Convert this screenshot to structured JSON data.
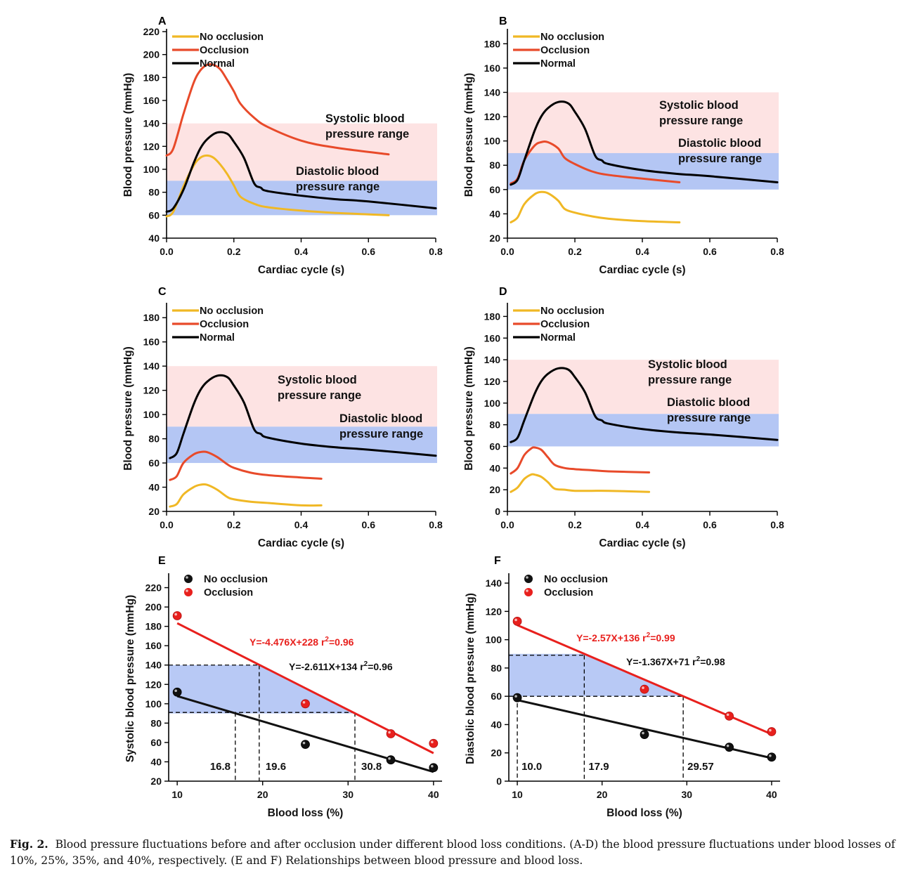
{
  "caption": {
    "fig_label": "Fig. 2.",
    "text": "Blood pressure fluctuations before and after occlusion under different blood loss conditions. (A-D) the blood pressure fluctuations under blood losses of 10%, 25%, 35%, and 40%, respectively. (E and F) Relationships between blood pressure and blood loss."
  },
  "colors": {
    "no_occlusion": "#f0b825",
    "occlusion": "#e84a2a",
    "normal": "#000000",
    "systolic_band": "#fde3e3",
    "diastolic_band": "#b4c6f4",
    "red_points": "#e8201d",
    "black_points": "#111111"
  },
  "chart_data": [
    {
      "panel": "A",
      "type": "line",
      "xlabel": "Cardiac cycle (s)",
      "ylabel": "Blood pressure (mmHg)",
      "xlim": [
        0,
        0.8
      ],
      "ylim": [
        40,
        220
      ],
      "xticks": [
        "0.0",
        "0.2",
        "0.4",
        "0.6",
        "0.8"
      ],
      "yticks": [
        "40",
        "60",
        "80",
        "100",
        "120",
        "140",
        "160",
        "180",
        "200",
        "220"
      ],
      "bands": [
        {
          "label": [
            "Systolic blood",
            "pressure range"
          ],
          "y": [
            90,
            140
          ]
        },
        {
          "label": [
            "Diastolic blood",
            "pressure range"
          ],
          "y": [
            60,
            90
          ]
        }
      ],
      "series": [
        {
          "name": "No occlusion",
          "x": [
            0,
            0.02,
            0.05,
            0.08,
            0.1,
            0.12,
            0.14,
            0.16,
            0.18,
            0.2,
            0.22,
            0.26,
            0.3,
            0.4,
            0.5,
            0.66
          ],
          "y": [
            59,
            63,
            85,
            103,
            110,
            112,
            110,
            104,
            96,
            86,
            76,
            70,
            67,
            64,
            62,
            60
          ]
        },
        {
          "name": "Occlusion",
          "x": [
            0,
            0.02,
            0.05,
            0.08,
            0.1,
            0.12,
            0.14,
            0.16,
            0.18,
            0.2,
            0.22,
            0.26,
            0.3,
            0.4,
            0.5,
            0.66
          ],
          "y": [
            112,
            118,
            148,
            175,
            186,
            191,
            191,
            187,
            178,
            168,
            157,
            145,
            137,
            125,
            119,
            113
          ]
        },
        {
          "name": "Normal",
          "x": [
            0,
            0.02,
            0.05,
            0.08,
            0.1,
            0.12,
            0.15,
            0.18,
            0.2,
            0.23,
            0.26,
            0.28,
            0.3,
            0.4,
            0.5,
            0.6,
            0.8
          ],
          "y": [
            63,
            66,
            82,
            105,
            118,
            126,
            132,
            131,
            124,
            110,
            88,
            84,
            81,
            77,
            74,
            72,
            66
          ]
        }
      ]
    },
    {
      "panel": "B",
      "type": "line",
      "xlabel": "Cardiac cycle (s)",
      "ylabel": "Blood pressure (mmHg)",
      "xlim": [
        0,
        0.8
      ],
      "ylim": [
        20,
        190
      ],
      "xticks": [
        "0.0",
        "0.2",
        "0.4",
        "0.6",
        "0.8"
      ],
      "yticks": [
        "20",
        "40",
        "60",
        "80",
        "100",
        "120",
        "140",
        "160",
        "180"
      ],
      "bands": [
        {
          "label": [
            "Systolic blood",
            "pressure range"
          ],
          "y": [
            90,
            140
          ]
        },
        {
          "label": [
            "Diastolic blood",
            "pressure range"
          ],
          "y": [
            60,
            90
          ]
        }
      ],
      "series": [
        {
          "name": "No occlusion",
          "x": [
            0.01,
            0.03,
            0.05,
            0.08,
            0.1,
            0.12,
            0.15,
            0.17,
            0.2,
            0.25,
            0.3,
            0.4,
            0.51
          ],
          "y": [
            33,
            37,
            48,
            56,
            58,
            57,
            51,
            44,
            41,
            38,
            36,
            34,
            33
          ]
        },
        {
          "name": "Occlusion",
          "x": [
            0.01,
            0.03,
            0.05,
            0.08,
            0.1,
            0.12,
            0.15,
            0.17,
            0.2,
            0.25,
            0.3,
            0.4,
            0.51
          ],
          "y": [
            65,
            69,
            84,
            96,
            99,
            99,
            94,
            86,
            81,
            75,
            72,
            69,
            66
          ]
        },
        {
          "name": "Normal",
          "x": [
            0.01,
            0.03,
            0.05,
            0.08,
            0.1,
            0.12,
            0.15,
            0.18,
            0.2,
            0.23,
            0.26,
            0.28,
            0.3,
            0.4,
            0.5,
            0.6,
            0.8
          ],
          "y": [
            64,
            68,
            84,
            108,
            120,
            127,
            132,
            131,
            124,
            110,
            88,
            84,
            81,
            76,
            73,
            71,
            66
          ]
        }
      ]
    },
    {
      "panel": "C",
      "type": "line",
      "xlabel": "Cardiac cycle (s)",
      "ylabel": "Blood pressure (mmHg)",
      "xlim": [
        0,
        0.8
      ],
      "ylim": [
        20,
        190
      ],
      "xticks": [
        "0.0",
        "0.2",
        "0.4",
        "0.6",
        "0.8"
      ],
      "yticks": [
        "20",
        "40",
        "60",
        "80",
        "100",
        "120",
        "140",
        "160",
        "180"
      ],
      "bands": [
        {
          "label": [
            "Systolic blood",
            "pressure range"
          ],
          "y": [
            90,
            140
          ]
        },
        {
          "label": [
            "Diastolic blood",
            "pressure range"
          ],
          "y": [
            60,
            90
          ]
        }
      ],
      "series": [
        {
          "name": "No occlusion",
          "x": [
            0.01,
            0.03,
            0.05,
            0.08,
            0.1,
            0.12,
            0.15,
            0.18,
            0.2,
            0.25,
            0.3,
            0.4,
            0.46
          ],
          "y": [
            24,
            26,
            34,
            40,
            42,
            42,
            38,
            32,
            30,
            28,
            27,
            25,
            25
          ]
        },
        {
          "name": "Occlusion",
          "x": [
            0.01,
            0.03,
            0.05,
            0.08,
            0.1,
            0.12,
            0.15,
            0.18,
            0.2,
            0.25,
            0.3,
            0.4,
            0.46
          ],
          "y": [
            46,
            49,
            60,
            67,
            69,
            69,
            65,
            59,
            56,
            52,
            50,
            48,
            47
          ]
        },
        {
          "name": "Normal",
          "x": [
            0.01,
            0.03,
            0.05,
            0.08,
            0.1,
            0.12,
            0.15,
            0.18,
            0.2,
            0.23,
            0.26,
            0.28,
            0.3,
            0.4,
            0.5,
            0.6,
            0.8
          ],
          "y": [
            64,
            68,
            84,
            108,
            120,
            127,
            132,
            131,
            124,
            110,
            88,
            84,
            81,
            76,
            73,
            71,
            66
          ]
        }
      ]
    },
    {
      "panel": "D",
      "type": "line",
      "xlabel": "Cardiac cycle (s)",
      "ylabel": "Blood pressure (mmHg)",
      "xlim": [
        0,
        0.8
      ],
      "ylim": [
        0,
        190
      ],
      "xticks": [
        "0.0",
        "0.2",
        "0.4",
        "0.6",
        "0.8"
      ],
      "yticks": [
        "0",
        "20",
        "40",
        "60",
        "80",
        "100",
        "120",
        "140",
        "160",
        "180"
      ],
      "bands": [
        {
          "label": [
            "Systolic blood",
            "pressure range"
          ],
          "y": [
            90,
            140
          ]
        },
        {
          "label": [
            "Diastolic blood",
            "pressure range"
          ],
          "y": [
            60,
            90
          ]
        }
      ],
      "series": [
        {
          "name": "No occlusion",
          "x": [
            0.01,
            0.03,
            0.05,
            0.07,
            0.08,
            0.1,
            0.12,
            0.14,
            0.17,
            0.2,
            0.25,
            0.3,
            0.42
          ],
          "y": [
            18,
            22,
            30,
            34,
            34,
            32,
            27,
            21,
            20,
            19,
            19,
            19,
            18
          ]
        },
        {
          "name": "Occlusion",
          "x": [
            0.01,
            0.03,
            0.05,
            0.07,
            0.08,
            0.1,
            0.12,
            0.14,
            0.17,
            0.2,
            0.25,
            0.3,
            0.42
          ],
          "y": [
            35,
            40,
            52,
            58,
            59,
            57,
            50,
            43,
            40,
            39,
            38,
            37,
            36
          ]
        },
        {
          "name": "Normal",
          "x": [
            0.01,
            0.03,
            0.05,
            0.08,
            0.1,
            0.12,
            0.15,
            0.18,
            0.2,
            0.23,
            0.26,
            0.28,
            0.3,
            0.4,
            0.5,
            0.6,
            0.8
          ],
          "y": [
            64,
            68,
            84,
            108,
            120,
            127,
            132,
            131,
            124,
            110,
            88,
            84,
            81,
            76,
            73,
            71,
            66
          ]
        }
      ]
    },
    {
      "panel": "E",
      "type": "scatter",
      "xlabel": "Blood loss (%)",
      "ylabel": "Systolic blood pressure (mmHg)",
      "xlim": [
        9,
        41
      ],
      "ylim": [
        20,
        232
      ],
      "xticks": [
        "10",
        "20",
        "30",
        "40"
      ],
      "yticks": [
        "20",
        "40",
        "60",
        "80",
        "100",
        "120",
        "140",
        "160",
        "180",
        "200",
        "220"
      ],
      "series": [
        {
          "name": "No occlusion",
          "x": [
            10,
            25,
            35,
            40
          ],
          "y": [
            112,
            58,
            42,
            34
          ],
          "fit": {
            "slope": -2.611,
            "intercept": 134,
            "label": "Y=-2.611X+134",
            "r2": "=0.96"
          }
        },
        {
          "name": "Occlusion",
          "x": [
            10,
            25,
            35,
            40
          ],
          "y": [
            191,
            100,
            69,
            59
          ],
          "fit": {
            "slope": -4.476,
            "intercept": 228,
            "label": "Y=-4.476X+228",
            "r2": "=0.96"
          }
        }
      ],
      "shaded_range": {
        "y": [
          90,
          140
        ],
        "x": [
          18.9,
          30.7
        ]
      },
      "guides": {
        "horizontal_y": [
          140,
          91
        ],
        "vertical_x": [
          16.8,
          19.6,
          30.8
        ]
      },
      "annotations": [
        "16.8",
        "19.6",
        "30.8"
      ]
    },
    {
      "panel": "F",
      "type": "scatter",
      "xlabel": "Blood loss (%)",
      "ylabel": "Diastolic blood pressure (mmHg)",
      "xlim": [
        9,
        41
      ],
      "ylim": [
        0,
        145
      ],
      "xticks": [
        "10",
        "20",
        "30",
        "40"
      ],
      "yticks": [
        "0",
        "20",
        "40",
        "60",
        "80",
        "100",
        "120",
        "140"
      ],
      "series": [
        {
          "name": "No occlusion",
          "x": [
            10,
            25,
            35,
            40
          ],
          "y": [
            59,
            33,
            24,
            17
          ],
          "fit": {
            "slope": -1.367,
            "intercept": 71,
            "label": "Y=-1.367X+71",
            "r2": "=0.98"
          }
        },
        {
          "name": "Occlusion",
          "x": [
            10,
            25,
            35,
            40
          ],
          "y": [
            113,
            65,
            46,
            35
          ],
          "fit": {
            "slope": -2.57,
            "intercept": 136,
            "label": "Y=-2.57X+136",
            "r2": "=0.99"
          }
        }
      ],
      "shaded_range": {
        "y": [
          60,
          90
        ],
        "x": [
          17.9,
          29.57
        ]
      },
      "guides": {
        "horizontal_y": [
          89,
          60
        ],
        "vertical_x": [
          10.0,
          17.9,
          29.57
        ]
      },
      "annotations": [
        "10.0",
        "17.9",
        "29.57"
      ]
    }
  ]
}
